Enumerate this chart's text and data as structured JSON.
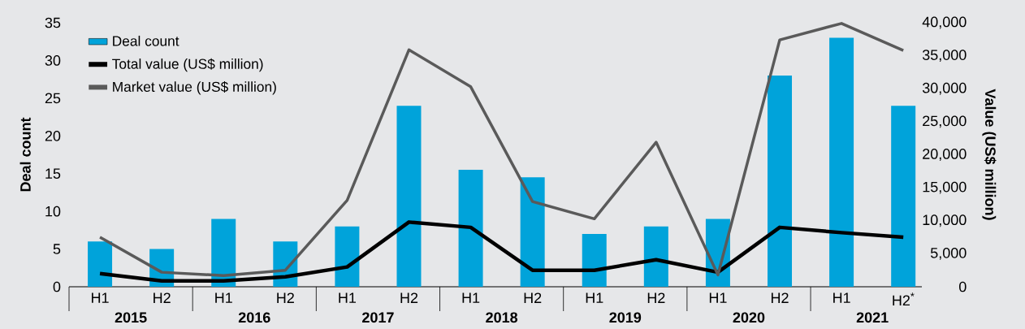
{
  "chart_data": {
    "type": "bar",
    "categories": [
      "H1",
      "H2",
      "H1",
      "H2",
      "H1",
      "H2",
      "H1",
      "H2",
      "H1",
      "H2",
      "H1",
      "H2",
      "H1",
      "H2$^{*}$"
    ],
    "series": [
      {
        "name": "Deal count",
        "color": "#00a3da",
        "values": [
          6,
          5,
          9,
          6,
          8,
          24,
          15.5,
          14.5,
          7,
          8,
          9,
          28,
          33,
          24
        ]
      },
      {
        "name": "Total value (US$ million)",
        "type": "line",
        "axis": "y2",
        "color": "#000000",
        "values": [
          2000,
          900,
          900,
          1500,
          3000,
          9800,
          9000,
          2500,
          2500,
          4100,
          2200,
          9000,
          8200,
          7500
        ]
      },
      {
        "name": "Market value (US$ million)",
        "type": "line",
        "axis": "y2",
        "color": "#5a5a5a",
        "values": [
          7500,
          2200,
          1700,
          2500,
          13100,
          35900,
          30300,
          12900,
          10300,
          21900,
          1800,
          37400,
          39900,
          35800
        ]
      }
    ],
    "ylabel": "Deal count",
    "y2label": "Value (US$ million)",
    "ylim": [
      0,
      35
    ],
    "yticks": [
      0,
      5,
      10,
      15,
      20,
      25,
      30,
      35
    ],
    "y2lim": [
      0,
      40000
    ],
    "y2ticks": [
      {
        "value": 0,
        "label": "0"
      },
      {
        "value": 5000,
        "label": "5,000"
      },
      {
        "value": 10000,
        "label": "10,000"
      },
      {
        "value": 15000,
        "label": "15,000"
      },
      {
        "value": 20000,
        "label": "20,000"
      },
      {
        "value": 25000,
        "label": "25,000"
      },
      {
        "value": 30000,
        "label": "30,000"
      },
      {
        "value": 35000,
        "label": "35,000"
      },
      {
        "value": 40000,
        "label": "40,000"
      }
    ],
    "annotations": [
      "2015",
      "2016",
      "2017",
      "2018",
      "2019",
      "2020",
      "2021"
    ],
    "legend": "top left",
    "grid": false
  }
}
